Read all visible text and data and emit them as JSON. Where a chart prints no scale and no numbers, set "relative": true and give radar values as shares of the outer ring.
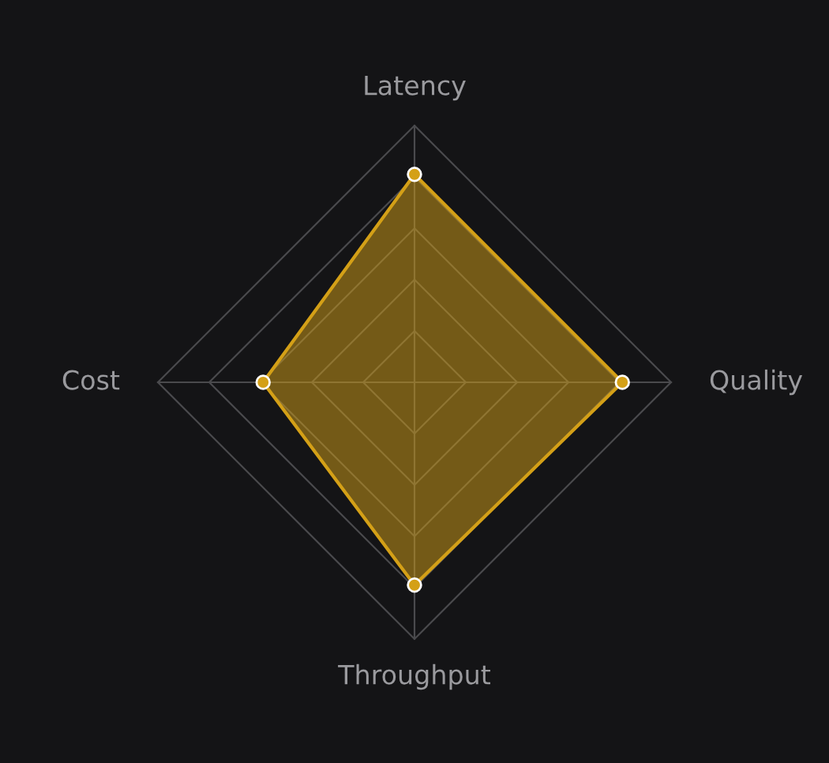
{
  "chart_data": {
    "type": "radar",
    "relative": true,
    "categories": [
      "Latency",
      "Quality",
      "Throughput",
      "Cost"
    ],
    "series": [
      {
        "color": "#d4a017",
        "values": [
          0.81,
          0.81,
          0.79,
          0.59
        ]
      }
    ],
    "grid": true,
    "marker": "circle",
    "line_style": "solid"
  }
}
